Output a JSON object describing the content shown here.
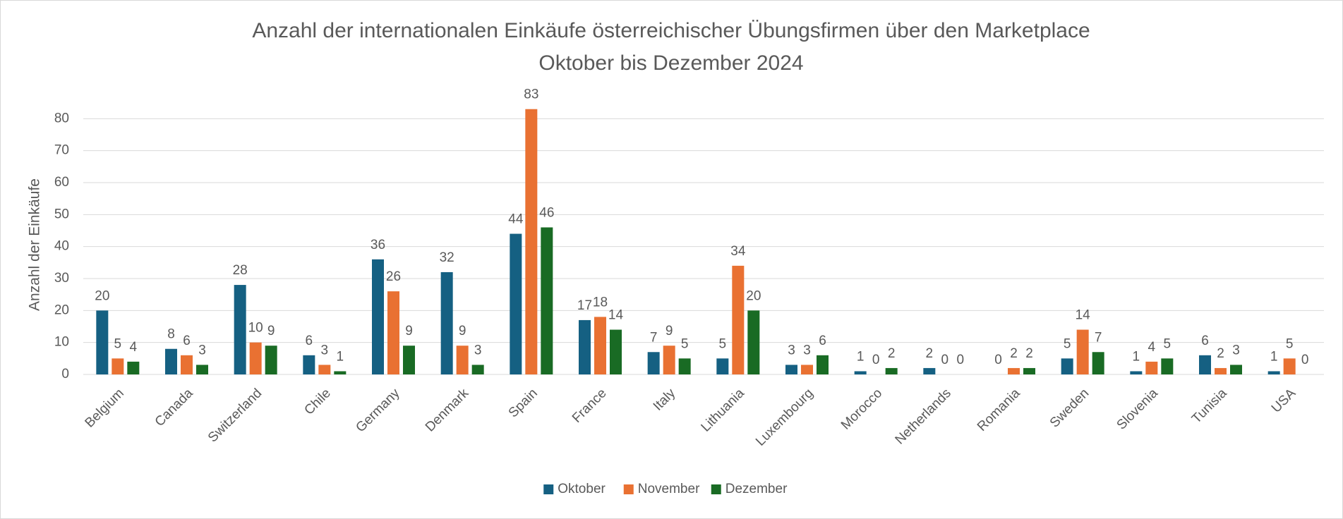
{
  "chart_data": {
    "type": "bar",
    "title": [
      "Anzahl der internationalen Einkäufe österreichischer Übungsfirmen über den Marketplace",
      "Oktober bis Dezember 2024"
    ],
    "y_label": "Anzahl der Einkäufe",
    "categories": [
      "Belgium",
      "Canada",
      "Switzerland",
      "Chile",
      "Germany",
      "Denmark",
      "Spain",
      "France",
      "Italy",
      "Lithuania",
      "Luxembourg",
      "Morocco",
      "Netherlands",
      "Romania",
      "Sweden",
      "Slovenia",
      "Tunisia",
      "USA"
    ],
    "series": [
      {
        "name": "Oktober",
        "color": "#156082",
        "values": [
          20,
          8,
          28,
          6,
          36,
          32,
          44,
          17,
          7,
          5,
          3,
          1,
          2,
          0,
          5,
          1,
          6,
          1
        ]
      },
      {
        "name": "November",
        "color": "#e97132",
        "values": [
          5,
          6,
          10,
          3,
          26,
          9,
          83,
          18,
          9,
          34,
          3,
          0,
          0,
          2,
          14,
          4,
          2,
          5
        ]
      },
      {
        "name": "Dezember",
        "color": "#196b24",
        "values": [
          4,
          3,
          9,
          1,
          9,
          3,
          46,
          14,
          5,
          20,
          6,
          2,
          0,
          2,
          7,
          5,
          3,
          0
        ]
      }
    ],
    "ylim": [
      0,
      90
    ],
    "yticks": [
      0,
      10,
      20,
      30,
      40,
      50,
      60,
      70,
      80
    ],
    "grid": true,
    "legend": "bottom"
  }
}
